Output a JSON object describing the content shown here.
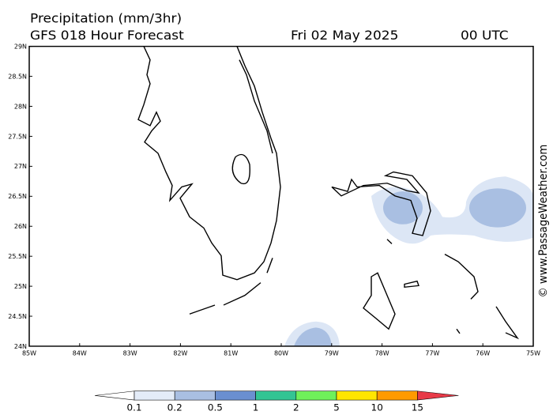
{
  "header": {
    "title": "Precipitation (mm/3hr)",
    "subtitle": "GFS 018 Hour Forecast",
    "date": "Fri 02 May 2025",
    "time": "00 UTC"
  },
  "map": {
    "lat_ticks": [
      "29N",
      "28.5N",
      "28N",
      "27.5N",
      "27N",
      "26.5N",
      "26N",
      "25.5N",
      "25N",
      "24.5N",
      "24N"
    ],
    "lon_ticks": [
      "85W",
      "84W",
      "83W",
      "82W",
      "81W",
      "80W",
      "79W",
      "78W",
      "77W",
      "76W",
      "75W"
    ]
  },
  "legend": {
    "levels": [
      0.1,
      0.2,
      0.5,
      1,
      2,
      5,
      10,
      15
    ],
    "colors": [
      "#ffffff",
      "#e4ecf8",
      "#a9bfe2",
      "#6a8fd0",
      "#33c493",
      "#6ff05a",
      "#ffe500",
      "#ff9a00",
      "#e83a48"
    ]
  },
  "watermark": "© www.PassageWeather.com"
}
